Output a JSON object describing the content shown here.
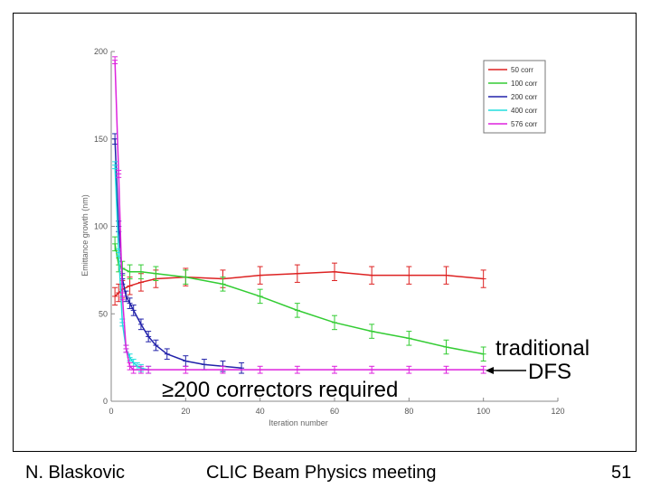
{
  "footer": {
    "author": "N. Blaskovic",
    "meeting": "CLIC Beam Physics meeting",
    "page": "51"
  },
  "annotations": {
    "correctors": "≥200 correctors required",
    "traditional_line1": "traditional",
    "traditional_line2": "DFS"
  },
  "chart_data": {
    "type": "line",
    "xlabel": "Iteration number",
    "ylabel": "Emittance growth (nm)",
    "xlim": [
      0,
      120
    ],
    "ylim": [
      0,
      200
    ],
    "xticks": [
      0,
      20,
      40,
      60,
      80,
      100,
      120
    ],
    "yticks": [
      0,
      50,
      100,
      150,
      200
    ],
    "legend_position": "top-right",
    "series": [
      {
        "name": "50 corr",
        "color": "#dd2222",
        "x": [
          1,
          2,
          3,
          5,
          8,
          12,
          20,
          30,
          40,
          50,
          60,
          70,
          80,
          90,
          100
        ],
        "y": [
          60,
          62,
          64,
          66,
          68,
          70,
          71,
          70,
          72,
          73,
          74,
          72,
          72,
          72,
          70
        ],
        "err": 5
      },
      {
        "name": "100 corr",
        "color": "#33cc33",
        "x": [
          1,
          2,
          3,
          5,
          8,
          12,
          20,
          30,
          40,
          50,
          60,
          70,
          80,
          90,
          100
        ],
        "y": [
          90,
          78,
          76,
          74,
          74,
          73,
          71,
          67,
          60,
          52,
          45,
          40,
          36,
          31,
          27
        ],
        "err": 4
      },
      {
        "name": "200 corr",
        "color": "#2222aa",
        "x": [
          1,
          2,
          3,
          4,
          5,
          6,
          8,
          10,
          12,
          15,
          20,
          25,
          30,
          35
        ],
        "y": [
          150,
          100,
          70,
          60,
          56,
          52,
          44,
          37,
          32,
          27,
          23,
          21,
          20,
          19
        ],
        "err": 3
      },
      {
        "name": "400 corr",
        "color": "#22dddd",
        "x": [
          1,
          2,
          3,
          4,
          5,
          6,
          7,
          8,
          10
        ],
        "y": [
          135,
          85,
          45,
          30,
          25,
          22,
          20,
          19,
          18
        ],
        "err": 2
      },
      {
        "name": "576 corr",
        "color": "#dd22dd",
        "x": [
          1,
          2,
          3,
          4,
          5,
          6,
          8,
          10,
          20,
          30,
          40,
          50,
          60,
          70,
          80,
          90,
          100
        ],
        "y": [
          195,
          130,
          60,
          30,
          20,
          18,
          18,
          18,
          18,
          18,
          18,
          18,
          18,
          18,
          18,
          18,
          18
        ],
        "err": 2
      }
    ]
  }
}
